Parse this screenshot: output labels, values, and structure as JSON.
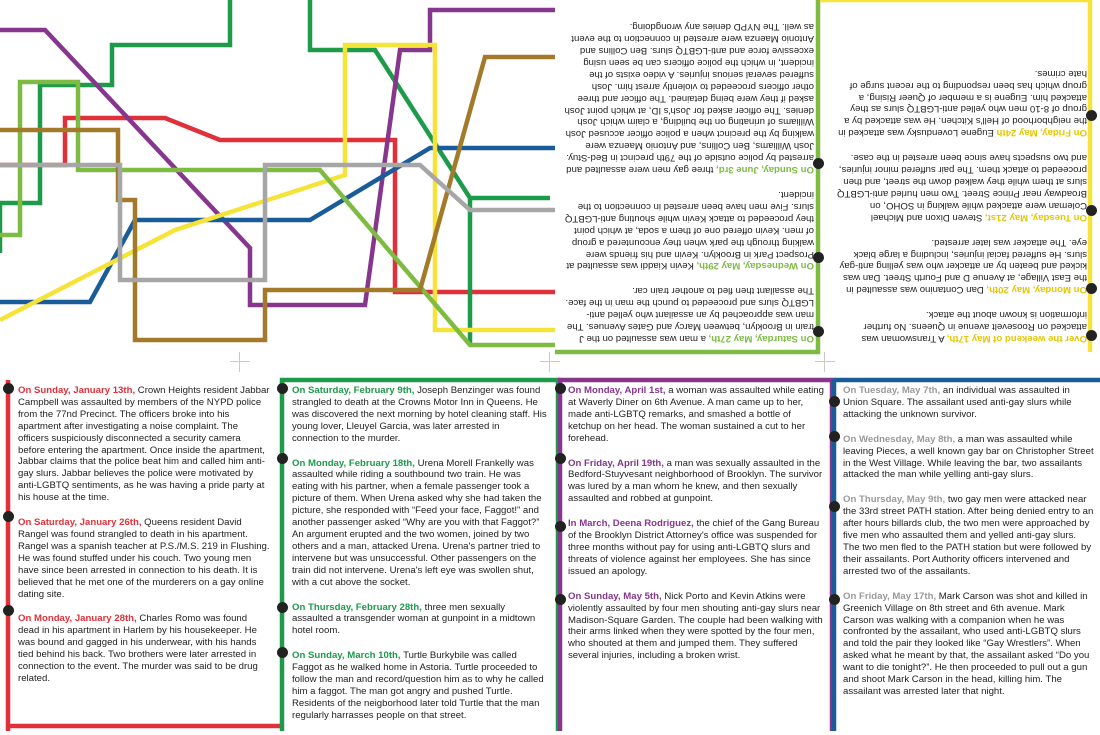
{
  "colors": {
    "red": "#e0313a",
    "green": "#1d9a4a",
    "purple": "#87368e",
    "blue": "#1a5c9a",
    "yellow": "#f6e33a",
    "lime": "#7dbb42",
    "brown": "#a37a2a",
    "gray": "#a6a6a6",
    "darkblue": "#0a4a8a"
  },
  "top": {
    "left_col": [
      {
        "date": "On Saturday, May 27th,",
        "text": " a man was assaulted on the J train in Brooklyn, between Marcy and Gates Avenues. The man was approached by an assailant who yelled anti-LGBTQ slurs and proceeded to punch the man in the face. The assailant then fled to another train car."
      },
      {
        "date": "On Wednesday, May 29th,",
        "text": " Kevin Kiaddi was assaulted at Prospect Park in Brooklyn. Kevin and his friends were walking through the park when they encountered a group of men. Kevin offered one of them a soda, at which point they proceeded to attack Kevin while shouting anti-LGBTQ slurs. Five men have been arrested in connection to the incident."
      },
      {
        "date": "On Sunday, June 3rd,",
        "text": " three gay men were assaulted and arrested by police outside of the 79th precinct in Bed-Stuy. Josh Williams, Ben Collins, and Antonio Maenza were walking by the precinct when a police officer accused Josh Williams of urinating on the building, a claim which Josh denies. The officer asked for Josh's ID, at which point Josh asked if they were being detained. The officer and three other officers proceeded to violently arrest him. Josh suffered several serious injuries. A video exists of the incident, in which the police officers can be seen using excessive force and anti-LGBTQ slurs. Ben Collins and Antonio Maenza were arrested in connection to the event as well. The NYPD denies any wrongdoing."
      }
    ],
    "right_col": [
      {
        "date": "Over the weekend of May 17th,",
        "text": " A Transwoman was attacked on Roosevelt avenue in Queens. No further information is known about the attack."
      },
      {
        "date": "On Monday, May 20th,",
        "text": " Dan Contanino was assaulted in the East Village, at Avenue D and Fourth Street. Dan was kicked and beaten by an attacker who was yelling anti-gay slurs. He suffered facial injuries, including a large black eye. The attacker was later arrested."
      },
      {
        "date": "On Tuesday, May 21st,",
        "text": " Steven Dixon and Michael Coleman were attacked while walking in SOHO, on Broadway near Prince Street. Two men hurled anti-LGBTQ slurs at them while they walked down the street, and then proceeded to attack them. The pair suffered minor injuries, and two suspects have since been arrested in the case."
      },
      {
        "date": "On Friday, May 24th",
        "text": " Eugene Lovendusky was attacked in the neighborhood of Hell's Kitchen. He was attacked by a group of 8-10 men who yelled anti-LGBTQ slurs as they attacked him. Eugene is a member of Queer Rising, a group which has been responding to the recent surge of hate crimes."
      }
    ]
  },
  "bottom": {
    "col1": [
      {
        "date": "On Sunday, January 13th,",
        "text": " Crown Heights resident Jabbar Campbell was assaulted by members of the NYPD police from the 77nd Precinct. The officers broke into his apartment after investigating a noise complaint. The officers suspiciously disconnected a security camera before entering the apartment. Once inside the apartment, Jabbar claims that the police beat him and called him anti-gay slurs. Jabbar believes the police were motivated by anti-LGBTQ sentiments, as he was having a pride party at his house at the time."
      },
      {
        "date": "On Saturday, January 26th,",
        "text": " Queens resident David Rangel was found strangled to death in his apartment. Rangel was a spanish teacher at P.S./M.S. 219 in Flushing. He was found stuffed under his couch. Two young men have since been arrested in connection to his death. It is believed that he met one of the murderers on a gay online dating site."
      },
      {
        "date": "On Monday, January 28th,",
        "text": " Charles Romo was found dead in his apartment in Harlem by his housekeeper. He was bound and gagged in his underwear, with his hands tied behind his back. Two brothers were later arrested in connection to the event. The murder was said to be drug related."
      }
    ],
    "col2": [
      {
        "date": "On Saturday, February 9th,",
        "text": " Joseph Benzinger was found strangled to death at the Crowns Motor Inn in Queens. He was discovered the next morning by hotel cleaning staff. His young lover, Lleuyel Garcia, was later arrested in connection to the murder."
      },
      {
        "date": "On Monday, February 18th,",
        "text": " Urena Morell Frankelly was assaulted while riding a southbound two train. He was eating with his partner, when a female passenger took a picture of them. When Urena asked why she had taken the picture, she responded with “Feed your face, Faggot!” and another passenger asked “Why are you with that Faggot?” An argument erupted and the two women, joined by two others and a man, attacked Urena. Urena's partner tried to intervene but was unsuccessful. Other passengers on the train did not intervene. Urena's left eye was swollen shut, with a cut above the socket."
      },
      {
        "date": "On Thursday, February 28th,",
        "text": " three men sexually assaulted a transgender woman at gunpoint in a midtown hotel room."
      },
      {
        "date": "On Sunday, March 10th,",
        "text": " Turtle Burkybile was called Faggot as he walked home in Astoria. Turtle proceeded to follow the man and record/question him as to why he called him a faggot. The man got angry and pushed Turtle. Residents of the neigborhood later told Turtle that the man regularly harrasses people on that street."
      }
    ],
    "col3": [
      {
        "date": "On Monday, April 1st,",
        "text": " a woman was assaulted while eating at Waverly Diner on 6th Avenue. A man came up to her, made anti-LGBTQ remarks, and smashed a bottle of ketchup on her head. The woman sustained a cut to her forehead."
      },
      {
        "date": "On Friday, April 19th,",
        "text": " a man was sexually assaulted in the Bedford-Stuyvesant neighborhood of Brooklyn. The survivor was lured by a man whom he knew, and then sexually assaulted and robbed at gunpoint."
      },
      {
        "date": "In March, Deena Rodriguez,",
        "text": " the chief of the Gang Bureau of the Brooklyn District Attorney's office was suspended for three months without pay for using anti-LGBTQ slurs and threats of violence against her employees. She has since issued an apology."
      },
      {
        "date": "On Sunday, May 5th,",
        "text": " Nick Porto and Kevin Atkins were violently assaulted by four men shouting anti-gay slurs near Madison-Square Garden. The couple had been walking with their arms linked when they were spotted by the four men, who shouted at them and jumped them. They suffered several injuries, including a broken wrist."
      }
    ],
    "col4": [
      {
        "date": "On Tuesday, May 7th,",
        "text": " an individual was assaulted in Union Square. The assailant used anti-gay slurs while attacking the unknown survivor."
      },
      {
        "date": "On Wednesday, May 8th,",
        "text": " a man was assaulted while leaving Pieces, a well known gay bar on Christopher Street in the West Village. While leaving the bar, two assailants attacked the man while yelling anti-gay slurs."
      },
      {
        "date": "On Thursday, May 9th,",
        "text": " two gay men were attacked near the 33rd street PATH station. After being denied entry to an after hours billards club, the two men were approached by five men who assaulted them and yelled anti-gay slurs. The two men fled to the PATH station but were followed by their assailants. Port Authority officers intervened and arrested two of the assailants."
      },
      {
        "date": "On Friday, May 17th,",
        "text": " Mark Carson was shot and killed in Greenich Village on 8th street and 6th avenue. Mark Carson was walking with a companion when he was confronted by the assailant, who used anti-LGBTQ slurs and told the pair they looked like “Gay Wrestlers”. When asked what he meant by that, the assailant asked “Do you want to die tonight?”. He then proceeded to pull out a gun and shoot Mark Carson in the head, killing him. The assailant was arrested later that night."
      }
    ]
  }
}
